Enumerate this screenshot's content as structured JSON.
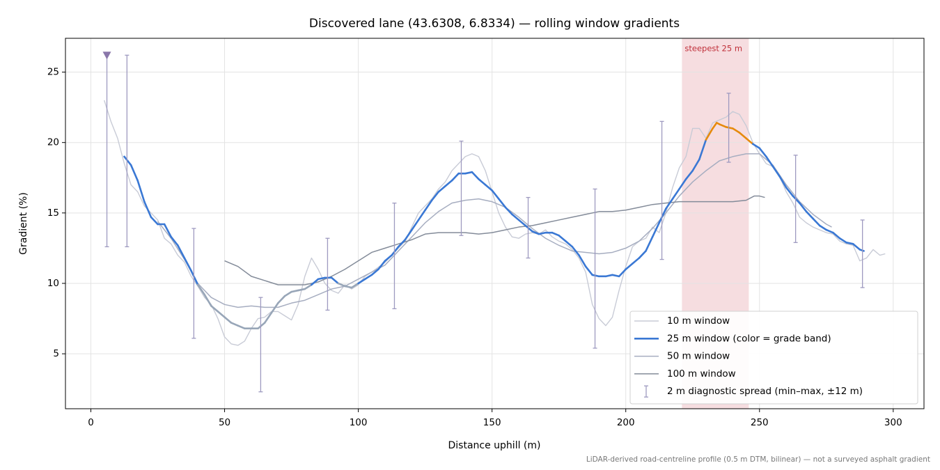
{
  "chart_data": {
    "type": "line",
    "title": "Discovered lane (43.6308, 6.8334) — rolling window gradients",
    "x_label": "Distance uphill (m)",
    "y_label": "Gradient (%)",
    "footnote": "LiDAR-derived road-centreline profile (0.5 m DTM, bilinear) — not a surveyed asphalt gradient",
    "xlim": [
      -9.5,
      311.5
    ],
    "ylim": [
      1.1,
      27.4
    ],
    "xticks": [
      0,
      50,
      100,
      150,
      200,
      250,
      300
    ],
    "yticks": [
      5,
      10,
      15,
      20,
      25
    ],
    "grid": true,
    "legend": "lower right",
    "highlight": {
      "label": "steepest 25 m",
      "x": [
        221,
        246
      ],
      "color": "#f3d2d5",
      "label_color": "#c0303a"
    },
    "marker": {
      "x": 6,
      "y": 26.2,
      "color": "#8a77aa"
    },
    "series": [
      {
        "name": "10 m window",
        "color": "#c8cbd6",
        "width": 1.4,
        "x": [
          5,
          7.5,
          10,
          12.5,
          15,
          17.5,
          20,
          22.5,
          25,
          27.5,
          30,
          32.5,
          35,
          37.5,
          40,
          42.5,
          45,
          47.5,
          50,
          52.5,
          55,
          57.5,
          60,
          62.5,
          65,
          67.5,
          70,
          72.5,
          75,
          77.5,
          80,
          82.5,
          85,
          87.5,
          90,
          92.5,
          95,
          97.5,
          100,
          102.5,
          105,
          110,
          112.5,
          115,
          117.5,
          120,
          122.5,
          125,
          127.5,
          130,
          132.5,
          135,
          137.5,
          140,
          142.5,
          145,
          147.5,
          150,
          152.5,
          155,
          157.5,
          160,
          162.5,
          165,
          167.5,
          170,
          172.5,
          175,
          177.5,
          180,
          182.5,
          185,
          187.5,
          190,
          192.5,
          195,
          197.5,
          200,
          202.5,
          205,
          207.5,
          210,
          212.5,
          215,
          217.5,
          220,
          222.5,
          225,
          227.5,
          230,
          232.5,
          235,
          237.5,
          240,
          242.5,
          245,
          247.5,
          250,
          252.5,
          255,
          257.5,
          260,
          262.5,
          265,
          267.5,
          270,
          272.5,
          275,
          277.5,
          280,
          282.5,
          285,
          287.5,
          290,
          292.5,
          295,
          297
        ],
        "values": [
          23.0,
          21.5,
          20.3,
          18.5,
          17.0,
          16.5,
          15.5,
          15.0,
          14.5,
          13.2,
          12.8,
          12.0,
          11.5,
          10.5,
          9.8,
          9.0,
          8.5,
          7.5,
          6.2,
          5.7,
          5.6,
          5.9,
          6.8,
          7.5,
          7.6,
          8.0,
          8.0,
          7.7,
          7.4,
          8.5,
          10.5,
          11.8,
          11.0,
          10.0,
          9.5,
          9.3,
          9.9,
          9.6,
          9.9,
          10.5,
          10.8,
          11.5,
          12.0,
          12.5,
          13.0,
          14.0,
          15.0,
          15.5,
          16.0,
          16.7,
          17.2,
          18.0,
          18.5,
          19.0,
          19.2,
          19.0,
          18.0,
          16.5,
          15.0,
          14.0,
          13.3,
          13.2,
          13.5,
          13.6,
          13.5,
          13.8,
          13.3,
          13.0,
          12.8,
          12.4,
          11.8,
          10.8,
          8.5,
          7.5,
          7.0,
          7.6,
          9.5,
          11.2,
          12.6,
          13.0,
          13.2,
          14.0,
          13.6,
          15.0,
          16.8,
          18.2,
          19.0,
          21.0,
          21.0,
          20.3,
          21.4,
          21.6,
          21.8,
          22.2,
          22.0,
          21.2,
          20.0,
          19.2,
          18.5,
          18.3,
          17.6,
          16.5,
          15.7,
          14.7,
          14.3,
          14.0,
          13.8,
          13.6,
          13.5,
          13.0,
          12.8,
          12.7,
          11.6,
          11.8,
          12.4,
          12.0,
          12.1
        ]
      },
      {
        "name": "25 m window (color = grade band)",
        "color": "#3a78d4",
        "width": 2.6,
        "grade_thresholds": [
          10,
          20
        ],
        "grade_colors": [
          "#98a6b8",
          "#3a78d4",
          "#e68a0c"
        ],
        "x": [
          12.5,
          15,
          17.5,
          20,
          22.5,
          25,
          27.5,
          30,
          32.5,
          35,
          37.5,
          40,
          42.5,
          45,
          47.5,
          50,
          52.5,
          55,
          57.5,
          60,
          62.5,
          65,
          67.5,
          70,
          72.5,
          75,
          77.5,
          80,
          82.5,
          85,
          87.5,
          90,
          92.5,
          95,
          97.5,
          100,
          102.5,
          105,
          107.5,
          110,
          112.5,
          115,
          117.5,
          120,
          122.5,
          125,
          127.5,
          130,
          132.5,
          135,
          137.5,
          140,
          142.5,
          145,
          147.5,
          150,
          152.5,
          155,
          157.5,
          160,
          162.5,
          165,
          167.5,
          170,
          172.5,
          175,
          177.5,
          180,
          182.5,
          185,
          187.5,
          190,
          192.5,
          195,
          197.5,
          200,
          202.5,
          205,
          207.5,
          210,
          212.5,
          215,
          217.5,
          220,
          222.5,
          225,
          227.5,
          230,
          232.5,
          234,
          235,
          237.5,
          240,
          242.5,
          245,
          247.5,
          250,
          252.5,
          255,
          257.5,
          260,
          262.5,
          265,
          267.5,
          270,
          272.5,
          275,
          277.5,
          280,
          282.5,
          285,
          287.5,
          289
        ],
        "values": [
          19.0,
          18.4,
          17.3,
          15.8,
          14.7,
          14.2,
          14.2,
          13.3,
          12.7,
          11.8,
          10.9,
          9.9,
          9.2,
          8.4,
          8.0,
          7.6,
          7.2,
          7.0,
          6.8,
          6.8,
          6.8,
          7.2,
          7.9,
          8.6,
          9.1,
          9.4,
          9.5,
          9.6,
          9.9,
          10.3,
          10.4,
          10.4,
          10.0,
          9.8,
          9.7,
          10.0,
          10.3,
          10.6,
          11.0,
          11.6,
          12.0,
          12.6,
          13.1,
          13.8,
          14.5,
          15.2,
          15.9,
          16.5,
          16.9,
          17.3,
          17.8,
          17.8,
          17.9,
          17.4,
          17.0,
          16.6,
          16.0,
          15.4,
          14.9,
          14.5,
          14.1,
          13.7,
          13.5,
          13.6,
          13.6,
          13.4,
          13.0,
          12.6,
          12.0,
          11.2,
          10.6,
          10.5,
          10.5,
          10.6,
          10.5,
          11.0,
          11.4,
          11.8,
          12.3,
          13.3,
          14.3,
          15.3,
          16.0,
          16.7,
          17.4,
          18.0,
          18.8,
          20.2,
          21.0,
          21.4,
          21.3,
          21.1,
          21.0,
          20.7,
          20.3,
          19.9,
          19.6,
          19.0,
          18.3,
          17.6,
          16.8,
          16.2,
          15.7,
          15.1,
          14.6,
          14.1,
          13.8,
          13.6,
          13.2,
          12.9,
          12.8,
          12.4,
          12.3
        ]
      },
      {
        "name": "50 m window",
        "color": "#a6adc0",
        "width": 1.5,
        "x": [
          25,
          30,
          35,
          40,
          45,
          50,
          55,
          60,
          65,
          70,
          75,
          80,
          85,
          90,
          95,
          100,
          105,
          110,
          115,
          120,
          125,
          130,
          135,
          140,
          145,
          150,
          155,
          160,
          165,
          170,
          175,
          180,
          185,
          190,
          195,
          200,
          205,
          210,
          215,
          220,
          225,
          230,
          235,
          240,
          245,
          250,
          255,
          260,
          265,
          270,
          275,
          277
        ],
        "values": [
          14.4,
          13.2,
          11.7,
          10.0,
          9.0,
          8.5,
          8.3,
          8.4,
          8.3,
          8.3,
          8.6,
          8.8,
          9.2,
          9.6,
          9.8,
          10.3,
          10.8,
          11.3,
          12.3,
          13.3,
          14.3,
          15.1,
          15.7,
          15.9,
          16.0,
          15.8,
          15.4,
          14.7,
          13.9,
          13.2,
          12.7,
          12.3,
          12.2,
          12.1,
          12.2,
          12.5,
          13.0,
          13.9,
          15.0,
          16.2,
          17.2,
          18.0,
          18.7,
          19.0,
          19.2,
          19.2,
          18.4,
          17.0,
          15.8,
          14.9,
          14.2,
          14.0
        ]
      },
      {
        "name": "100 m window",
        "color": "#838b99",
        "width": 1.5,
        "x": [
          50,
          55,
          60,
          65,
          70,
          75,
          80,
          85,
          90,
          95,
          100,
          105,
          110,
          115,
          120,
          125,
          130,
          135,
          140,
          145,
          150,
          155,
          160,
          165,
          170,
          175,
          180,
          185,
          190,
          195,
          200,
          205,
          210,
          215,
          220,
          225,
          230,
          235,
          240,
          245,
          248,
          250,
          252
        ],
        "values": [
          11.6,
          11.2,
          10.5,
          10.2,
          9.9,
          9.9,
          9.9,
          10.1,
          10.5,
          11.0,
          11.6,
          12.2,
          12.5,
          12.8,
          13.1,
          13.5,
          13.6,
          13.6,
          13.6,
          13.5,
          13.6,
          13.8,
          14.0,
          14.1,
          14.3,
          14.5,
          14.7,
          14.9,
          15.1,
          15.1,
          15.2,
          15.4,
          15.6,
          15.7,
          15.8,
          15.8,
          15.8,
          15.8,
          15.8,
          15.9,
          16.2,
          16.2,
          16.1
        ]
      }
    ],
    "errorbars": {
      "name": "2 m diagnostic spread (min–max, ±12 m)",
      "color": "#9e9ac0",
      "x": [
        6,
        13.5,
        38.5,
        63.5,
        88.5,
        113.5,
        138.5,
        163.5,
        188.5,
        213.5,
        238.5,
        263.5,
        288.5
      ],
      "low": [
        12.6,
        12.6,
        6.1,
        2.3,
        8.1,
        8.2,
        13.4,
        11.8,
        5.4,
        11.7,
        18.6,
        12.9,
        9.7
      ],
      "high": [
        26.2,
        26.2,
        13.9,
        9.0,
        13.2,
        15.7,
        20.1,
        16.1,
        16.7,
        21.5,
        23.5,
        19.1,
        14.5
      ]
    }
  }
}
